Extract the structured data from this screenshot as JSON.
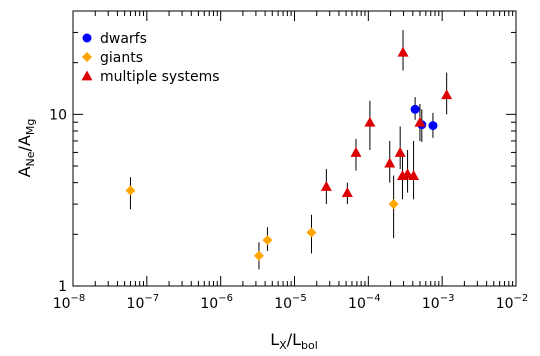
{
  "chart_data": {
    "type": "scatter",
    "xlabel": {
      "main": "L",
      "sub1": "X",
      "slash": "/L",
      "sub2": "bol"
    },
    "ylabel": {
      "main": "A",
      "sub1": "Ne",
      "slash": "/A",
      "sub2": "Mg"
    },
    "x_scale": "log",
    "y_scale": "log",
    "xlim": [
      1e-08,
      0.01
    ],
    "ylim": [
      1,
      40
    ],
    "x_ticks": [
      {
        "value": 1e-08,
        "base": "10",
        "exp": "−8"
      },
      {
        "value": 1e-07,
        "base": "10",
        "exp": "−7"
      },
      {
        "value": 1e-06,
        "base": "10",
        "exp": "−6"
      },
      {
        "value": 1e-05,
        "base": "10",
        "exp": "−5"
      },
      {
        "value": 0.0001,
        "base": "10",
        "exp": "−4"
      },
      {
        "value": 0.001,
        "base": "10",
        "exp": "−3"
      },
      {
        "value": 0.01,
        "base": "10",
        "exp": "−2"
      }
    ],
    "y_ticks": [
      {
        "value": 1,
        "label": "1"
      },
      {
        "value": 10,
        "label": "10"
      }
    ],
    "legend": {
      "placement": "top-left",
      "entries": [
        {
          "label": "dwarfs",
          "marker": "circle",
          "color": "#0000ff"
        },
        {
          "label": "giants",
          "marker": "diamond",
          "color": "#ffa500"
        },
        {
          "label": "multiple systems",
          "marker": "triangle",
          "color": "#dd0000"
        }
      ]
    },
    "series": [
      {
        "name": "dwarfs",
        "marker": "circle",
        "color": "#0000ff",
        "points": [
          {
            "x": 0.00043,
            "y": 10.7,
            "ylo": 9.3,
            "yhi": 12.6
          },
          {
            "x": 0.00053,
            "y": 8.7,
            "ylo": 6.9,
            "yhi": 10.7
          },
          {
            "x": 0.00075,
            "y": 8.6,
            "ylo": 7.3,
            "yhi": 10.2
          }
        ]
      },
      {
        "name": "giants",
        "marker": "diamond",
        "color": "#ffa500",
        "points": [
          {
            "x": 6e-08,
            "y": 3.6,
            "ylo": 2.8,
            "yhi": 4.3
          },
          {
            "x": 3.3e-06,
            "y": 1.5,
            "ylo": 1.25,
            "yhi": 1.8
          },
          {
            "x": 4.3e-06,
            "y": 1.85,
            "ylo": 1.6,
            "yhi": 2.2
          },
          {
            "x": 1.7e-05,
            "y": 2.05,
            "ylo": 1.55,
            "yhi": 2.6
          },
          {
            "x": 0.00022,
            "y": 3.0,
            "ylo": 1.9,
            "yhi": 4.4
          }
        ]
      },
      {
        "name": "multiple systems",
        "marker": "triangle",
        "color": "#dd0000",
        "points": [
          {
            "x": 2.7e-05,
            "y": 3.8,
            "ylo": 3.0,
            "yhi": 4.8
          },
          {
            "x": 5.2e-05,
            "y": 3.5,
            "ylo": 3.0,
            "yhi": 4.0
          },
          {
            "x": 6.8e-05,
            "y": 6.0,
            "ylo": 4.7,
            "yhi": 7.2
          },
          {
            "x": 0.000105,
            "y": 9.0,
            "ylo": 6.2,
            "yhi": 12.0
          },
          {
            "x": 0.000195,
            "y": 5.2,
            "ylo": 4.0,
            "yhi": 7.0
          },
          {
            "x": 0.00027,
            "y": 6.0,
            "ylo": 4.8,
            "yhi": 8.5
          },
          {
            "x": 0.00029,
            "y": 4.4,
            "ylo": 3.2,
            "yhi": 6.0
          },
          {
            "x": 0.000295,
            "y": 23.0,
            "ylo": 18.0,
            "yhi": 31.0
          },
          {
            "x": 0.00034,
            "y": 4.5,
            "ylo": 3.5,
            "yhi": 6.2
          },
          {
            "x": 0.00041,
            "y": 4.4,
            "ylo": 3.2,
            "yhi": 7.0
          },
          {
            "x": 0.0005,
            "y": 9.0,
            "ylo": 7.0,
            "yhi": 11.5
          },
          {
            "x": 0.00115,
            "y": 13.0,
            "ylo": 10.0,
            "yhi": 17.5
          }
        ]
      }
    ]
  }
}
